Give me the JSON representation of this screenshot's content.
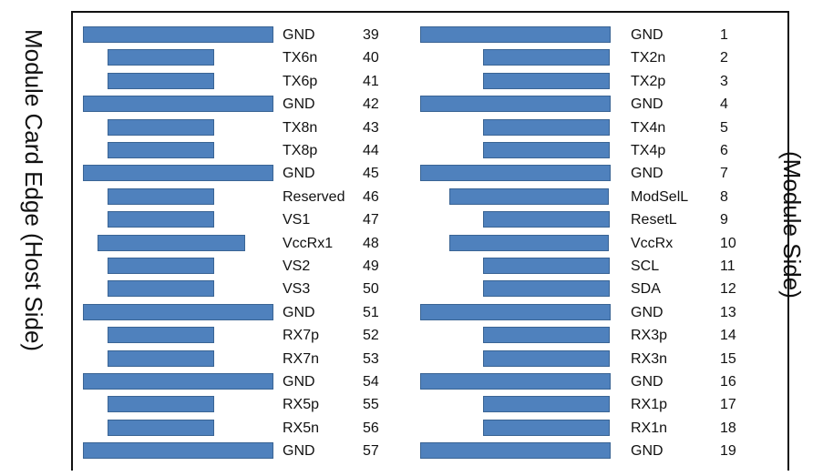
{
  "labels": {
    "host_side": "Module Card Edge (Host Side)",
    "module_side": "(Module Side)"
  },
  "colors": {
    "pad": "#4f81bd",
    "frame": "#111111"
  },
  "host_pins": [
    {
      "signal": "GND",
      "pin": "39",
      "type": "long"
    },
    {
      "signal": "TX6n",
      "pin": "40",
      "type": "short"
    },
    {
      "signal": "TX6p",
      "pin": "41",
      "type": "short"
    },
    {
      "signal": "GND",
      "pin": "42",
      "type": "long"
    },
    {
      "signal": "TX8n",
      "pin": "43",
      "type": "short"
    },
    {
      "signal": "TX8p",
      "pin": "44",
      "type": "short"
    },
    {
      "signal": "GND",
      "pin": "45",
      "type": "long"
    },
    {
      "signal": "Reserved",
      "pin": "46",
      "type": "short"
    },
    {
      "signal": "VS1",
      "pin": "47",
      "type": "short"
    },
    {
      "signal": "VccRx1",
      "pin": "48",
      "type": "mid"
    },
    {
      "signal": "VS2",
      "pin": "49",
      "type": "short"
    },
    {
      "signal": "VS3",
      "pin": "50",
      "type": "short"
    },
    {
      "signal": "GND",
      "pin": "51",
      "type": "long"
    },
    {
      "signal": "RX7p",
      "pin": "52",
      "type": "short"
    },
    {
      "signal": "RX7n",
      "pin": "53",
      "type": "short"
    },
    {
      "signal": "GND",
      "pin": "54",
      "type": "long"
    },
    {
      "signal": "RX5p",
      "pin": "55",
      "type": "short"
    },
    {
      "signal": "RX5n",
      "pin": "56",
      "type": "short"
    },
    {
      "signal": "GND",
      "pin": "57",
      "type": "long"
    }
  ],
  "module_pins": [
    {
      "signal": "GND",
      "pin": "1",
      "type": "long"
    },
    {
      "signal": "TX2n",
      "pin": "2",
      "type": "short"
    },
    {
      "signal": "TX2p",
      "pin": "3",
      "type": "short"
    },
    {
      "signal": "GND",
      "pin": "4",
      "type": "long"
    },
    {
      "signal": "TX4n",
      "pin": "5",
      "type": "short"
    },
    {
      "signal": "TX4p",
      "pin": "6",
      "type": "short"
    },
    {
      "signal": "GND",
      "pin": "7",
      "type": "long"
    },
    {
      "signal": "ModSelL",
      "pin": "8",
      "type": "mid"
    },
    {
      "signal": "ResetL",
      "pin": "9",
      "type": "short"
    },
    {
      "signal": "VccRx",
      "pin": "10",
      "type": "mid"
    },
    {
      "signal": "SCL",
      "pin": "11",
      "type": "short"
    },
    {
      "signal": "SDA",
      "pin": "12",
      "type": "short"
    },
    {
      "signal": "GND",
      "pin": "13",
      "type": "long"
    },
    {
      "signal": "RX3p",
      "pin": "14",
      "type": "short"
    },
    {
      "signal": "RX3n",
      "pin": "15",
      "type": "short"
    },
    {
      "signal": "GND",
      "pin": "16",
      "type": "long"
    },
    {
      "signal": "RX1p",
      "pin": "17",
      "type": "short"
    },
    {
      "signal": "RX1n",
      "pin": "18",
      "type": "short"
    },
    {
      "signal": "GND",
      "pin": "19",
      "type": "long"
    }
  ]
}
